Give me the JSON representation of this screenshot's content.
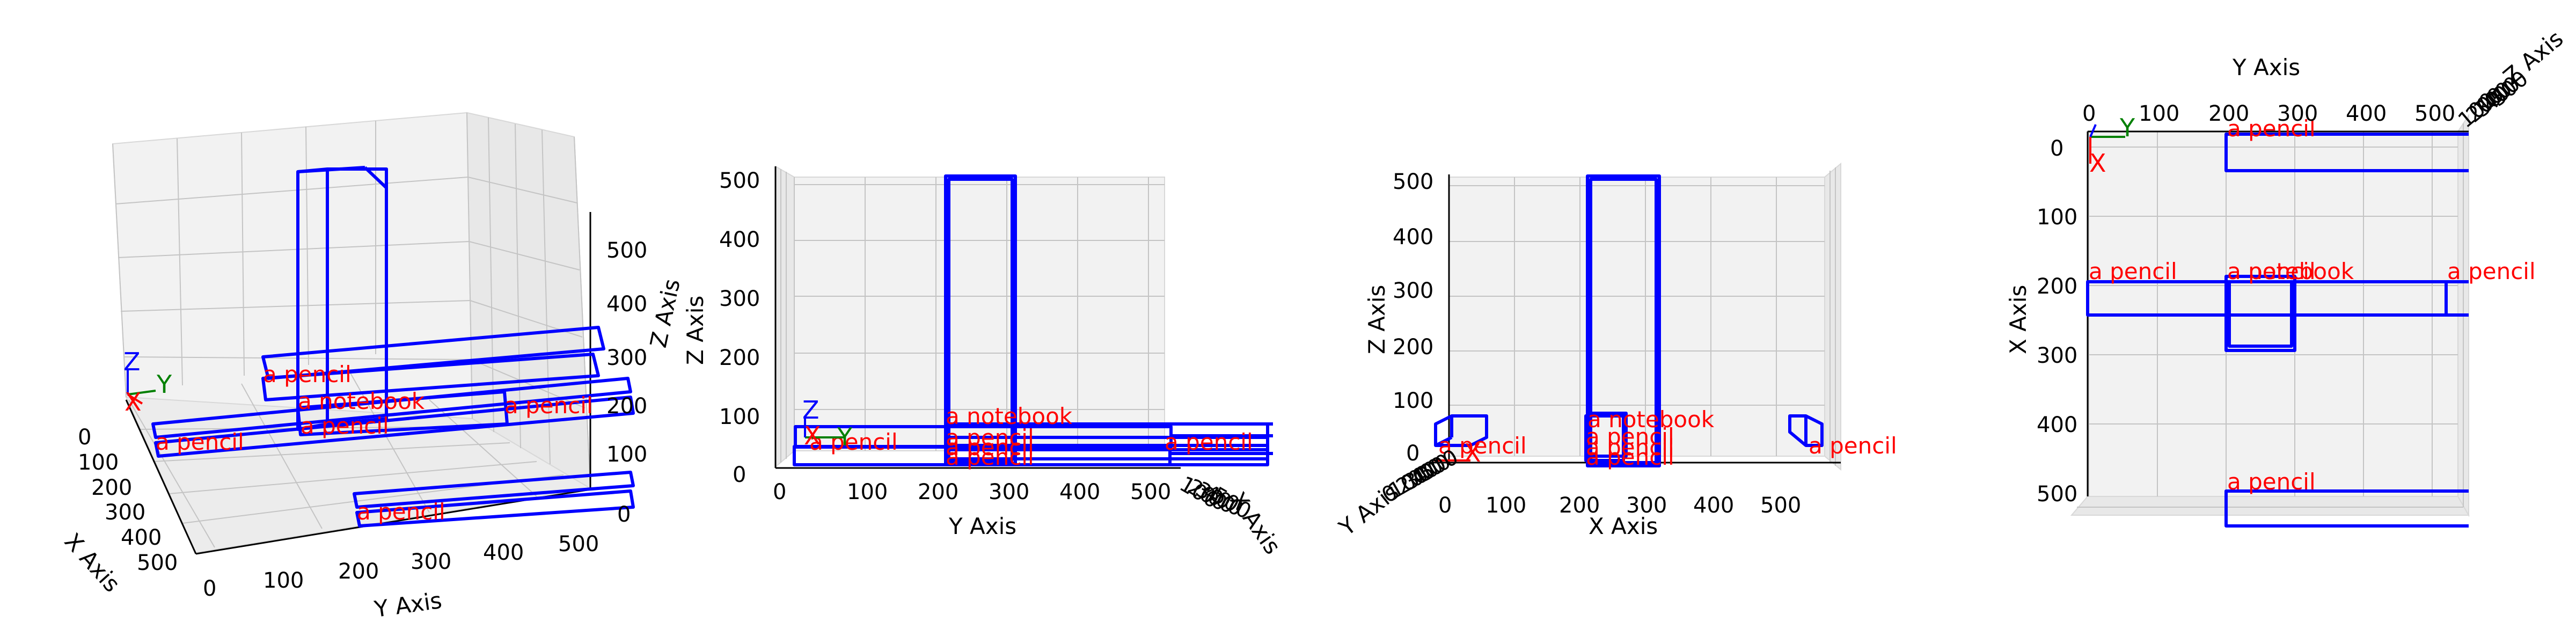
{
  "chart_data": [
    {
      "type": "scatter",
      "view": "perspective",
      "xlabel": "X Axis",
      "ylabel": "Y Axis",
      "zlabel": "Z Axis",
      "xlim": [
        0,
        500
      ],
      "ylim": [
        0,
        500
      ],
      "zlim": [
        0,
        500
      ],
      "xticks": [
        "0",
        "100",
        "200",
        "300",
        "400",
        "500"
      ],
      "yticks": [
        "0",
        "100",
        "200",
        "300",
        "400",
        "500"
      ],
      "zticks": [
        "0",
        "100",
        "200",
        "300",
        "400",
        "500"
      ],
      "grid": true,
      "triad": {
        "x": "X",
        "y": "Y",
        "z": "Z"
      },
      "labels": [
        "a pencil",
        "a notebook",
        "a pencil",
        "a pencil",
        "a pencil",
        "a pencil"
      ]
    },
    {
      "type": "scatter",
      "view": "front (Y-Z)",
      "xlabel": "Y Axis",
      "ylabel": "Z Axis",
      "xticks": [
        "0",
        "100",
        "200",
        "300",
        "400",
        "500"
      ],
      "yticks": [
        "0",
        "100",
        "200",
        "300",
        "400",
        "500"
      ],
      "depth_ticks": [
        "100",
        "200",
        "300",
        "400",
        "500"
      ],
      "depth_label": "X Axis",
      "grid": true,
      "triad": {
        "x": "X",
        "y": "Y",
        "z": "Z"
      },
      "labels": [
        "a notebook",
        "a pencil",
        "a pencil",
        "a pencil",
        "a pencil",
        "a pencil"
      ]
    },
    {
      "type": "scatter",
      "view": "side (X-Z)",
      "xlabel": "X Axis",
      "ylabel": "Z Axis",
      "xticks": [
        "0",
        "100",
        "200",
        "300",
        "400",
        "500"
      ],
      "yticks": [
        "0",
        "100",
        "200",
        "300",
        "400",
        "500"
      ],
      "depth_ticks": [
        "0",
        "100",
        "200",
        "300",
        "400",
        "500"
      ],
      "depth_label": "Y Axis",
      "grid": true,
      "triad": {
        "x": "X",
        "y": "",
        "z": ""
      },
      "labels": [
        "a notebook",
        "a pencil",
        "a pencil",
        "a pencil",
        "a pencil",
        "a pencil"
      ]
    },
    {
      "type": "scatter",
      "view": "top (Y-X)",
      "xlabel": "Y Axis",
      "ylabel": "X Axis",
      "xticks": [
        "0",
        "100",
        "200",
        "300",
        "400",
        "500"
      ],
      "yticks": [
        "0",
        "100",
        "200",
        "300",
        "400",
        "500"
      ],
      "depth_ticks": [
        "100",
        "200",
        "300",
        "400",
        "500"
      ],
      "depth_label": "Z Axis",
      "grid": true,
      "triad": {
        "x": "X",
        "y": "Y",
        "z": ""
      },
      "labels": [
        "a pencil",
        "a pencil",
        "a pencil",
        "a notebook",
        "a pencil",
        "a pencil"
      ]
    }
  ],
  "colors": {
    "box": "#0000ff",
    "label": "#ff0000",
    "triad_x": "#ff0000",
    "triad_y": "#008000",
    "triad_z": "#0000ff"
  }
}
